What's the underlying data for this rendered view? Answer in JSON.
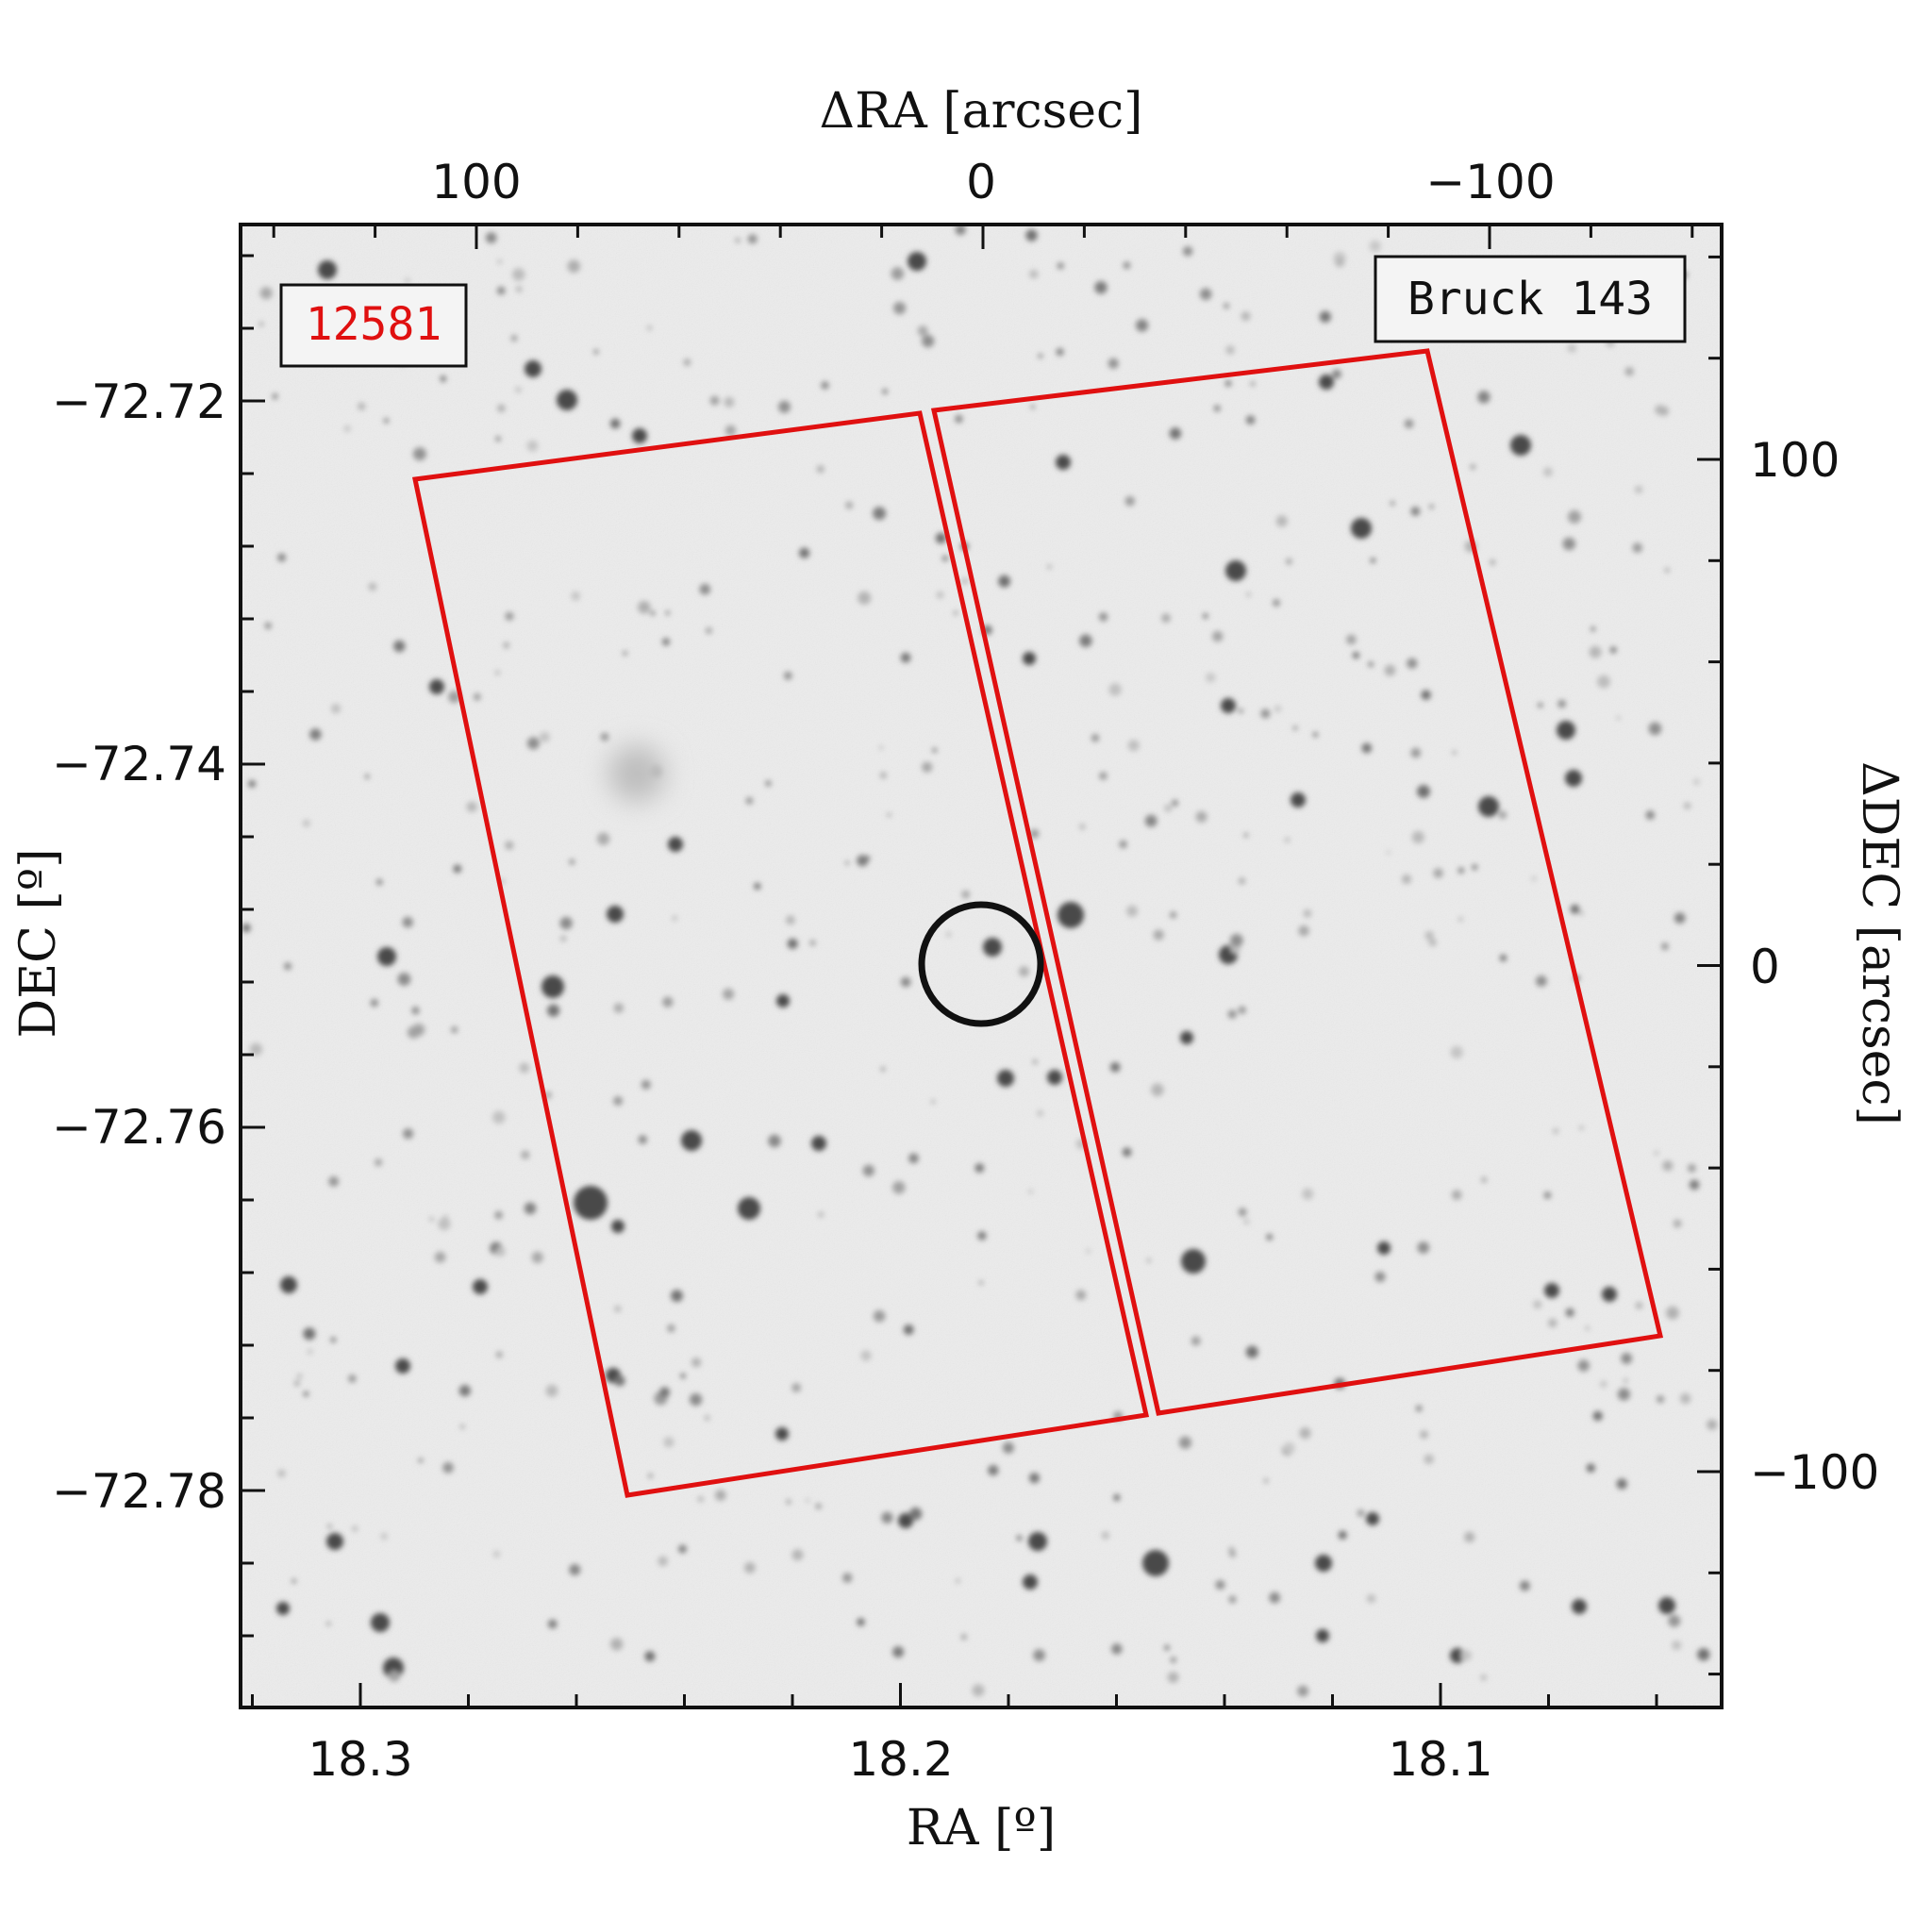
{
  "labels": {
    "field_id": "12581",
    "target_name": "Bruck 143",
    "x_axis_bottom": "RA [º]",
    "x_axis_top": "ΔRA [arcsec]",
    "y_axis_left": "DEC [º]",
    "y_axis_right": "ΔDEC [arcsec]"
  },
  "axes": {
    "bottom_ticks": [
      "18.3",
      "18.2",
      "18.1"
    ],
    "top_ticks": [
      "100",
      "0",
      "−100"
    ],
    "left_ticks": [
      "−72.72",
      "−72.74",
      "−72.76",
      "−72.78"
    ],
    "right_ticks": [
      "100",
      "0",
      "−100"
    ]
  },
  "colors": {
    "field_outline": "#e01010",
    "target_circle": "#111111",
    "label_field_id": "#e01010",
    "sky_background": "#ececec"
  },
  "icons": {
    "target_marker": "circle-marker",
    "footprint": "rectangle-outline"
  }
}
